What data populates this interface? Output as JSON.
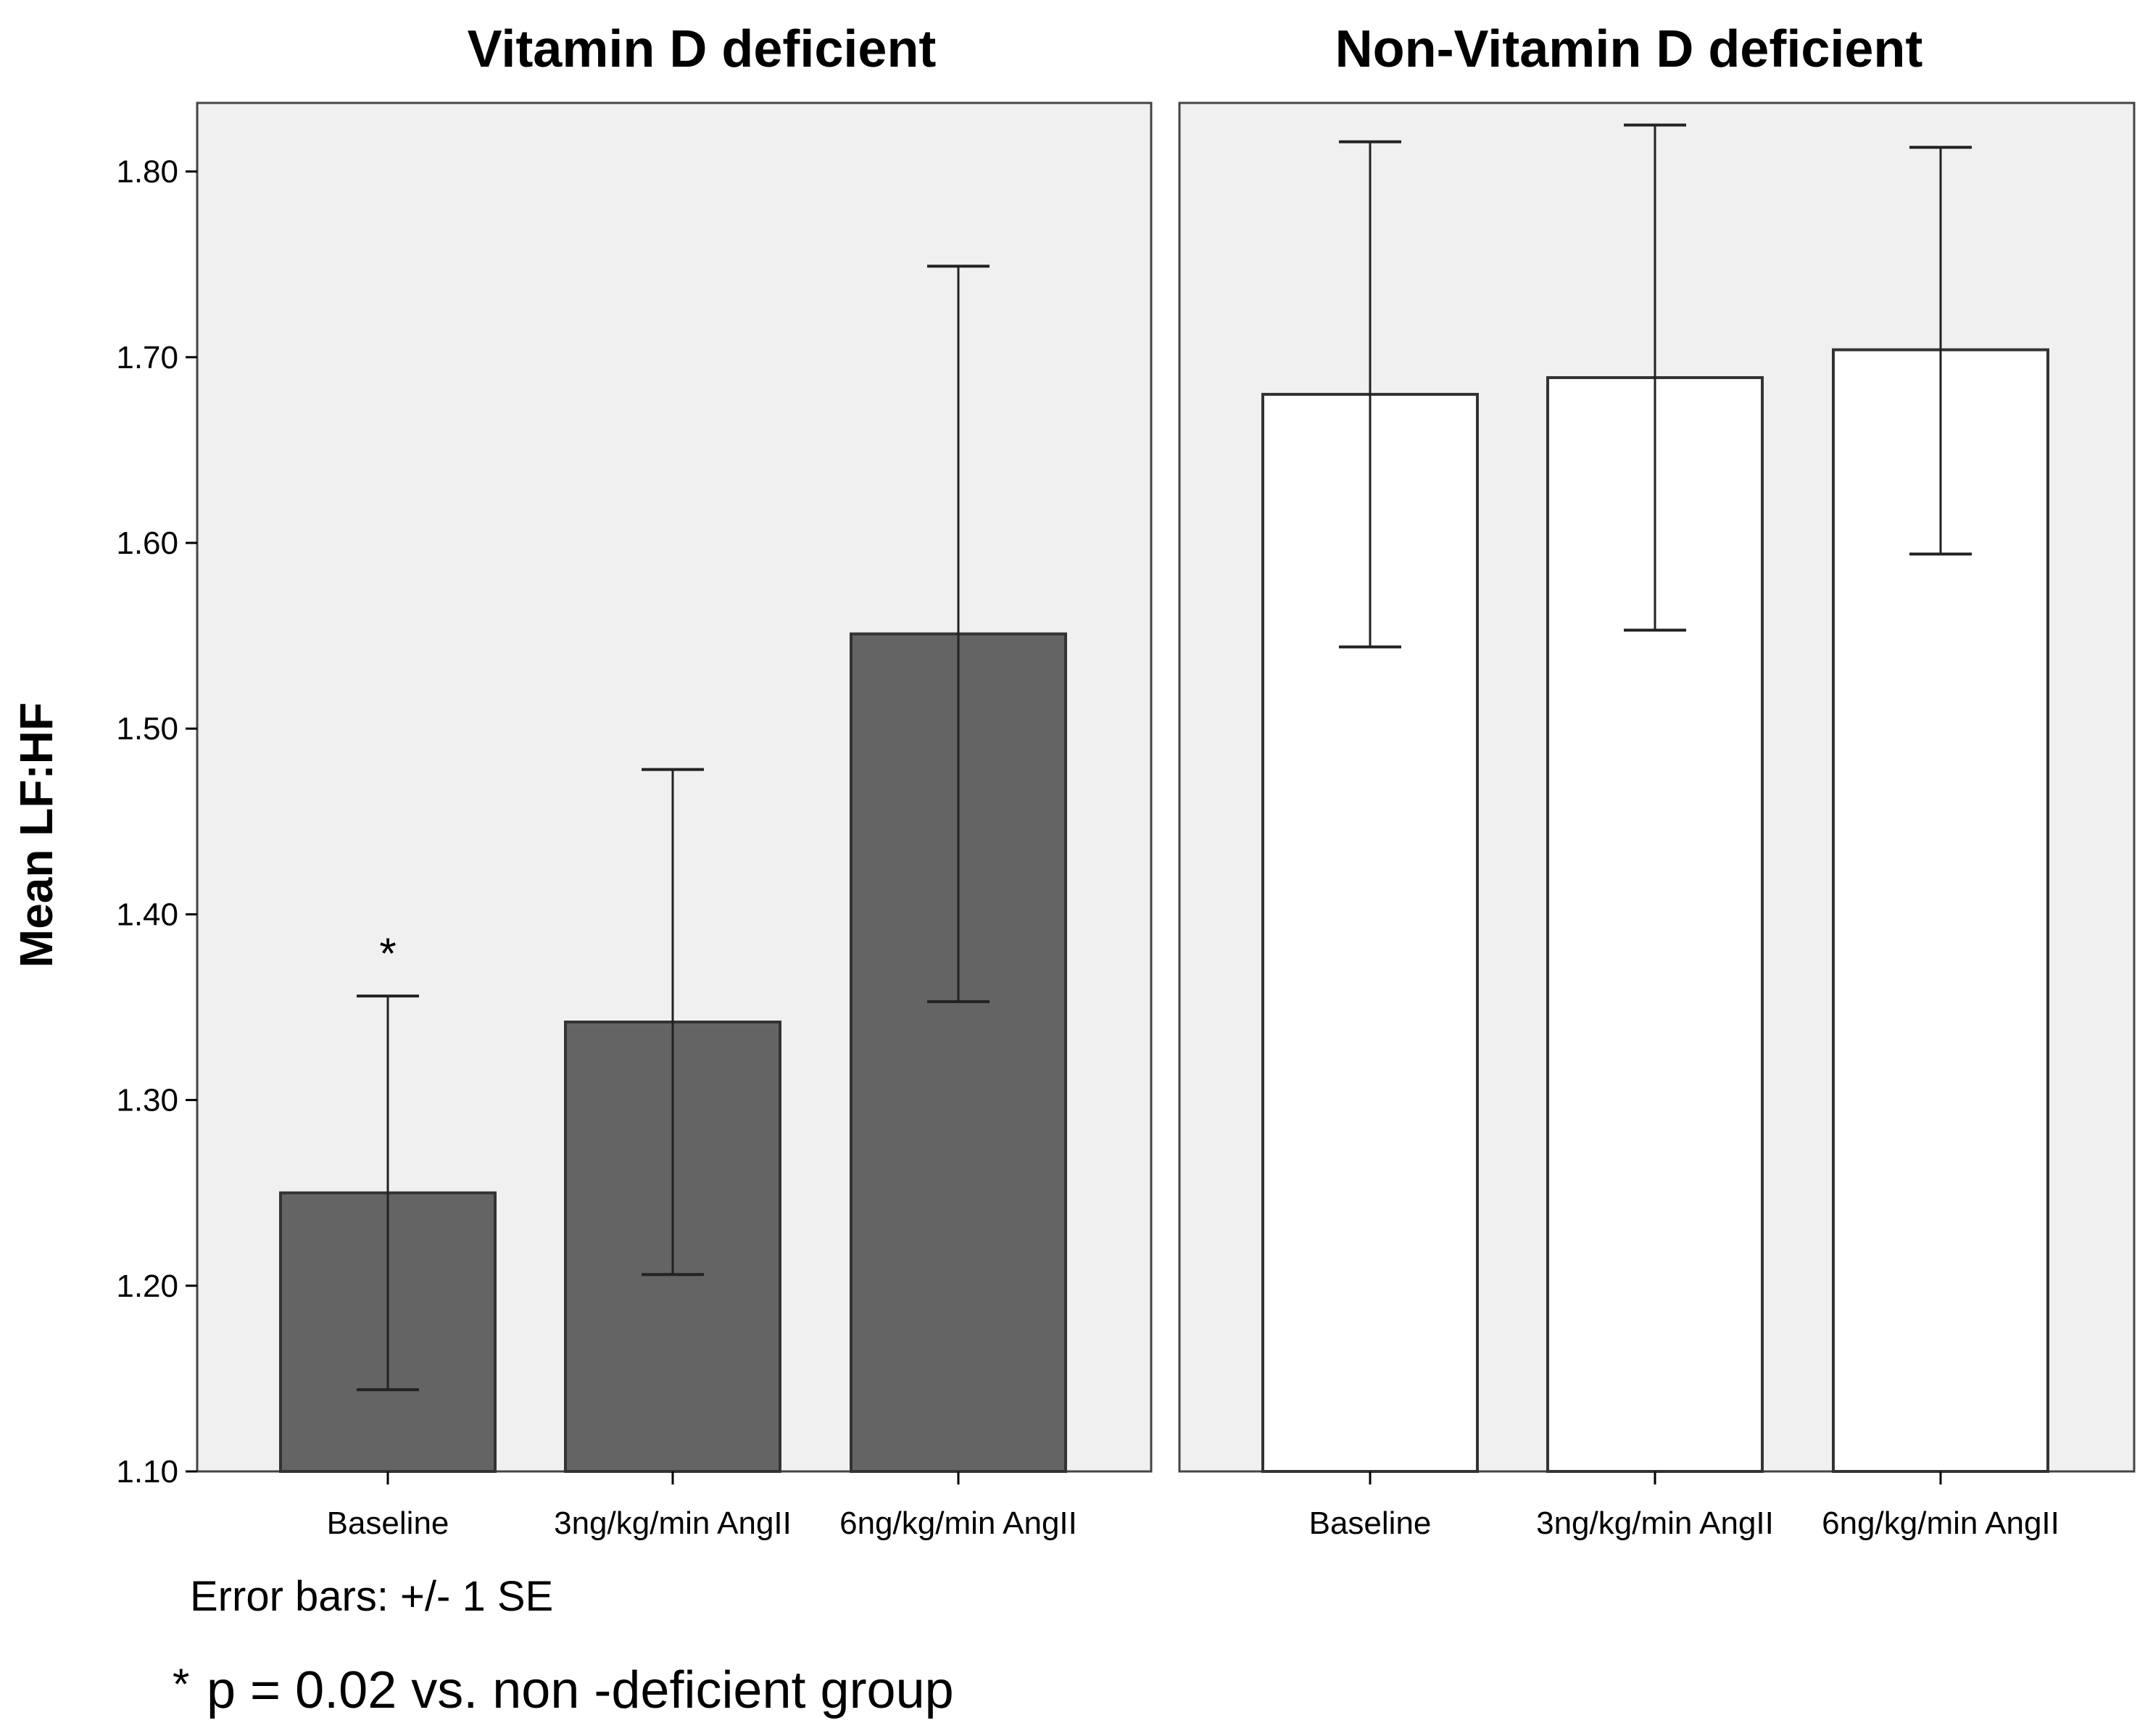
{
  "chart_data": {
    "type": "bar",
    "ylabel": "Mean LF:HF",
    "ylim": [
      1.1,
      1.84
    ],
    "yticks": [
      "1.10",
      "1.20",
      "1.30",
      "1.40",
      "1.50",
      "1.60",
      "1.70",
      "1.80"
    ],
    "categories": [
      "Baseline",
      "3ng/kg/min AngII",
      "6ng/kg/min AngII"
    ],
    "panels": [
      {
        "title": "Vitamin D deficient",
        "bar_color": "#646464",
        "values": [
          1.25,
          1.342,
          1.551
        ],
        "error_lower": [
          1.144,
          1.206,
          1.353
        ],
        "error_upper": [
          1.356,
          1.478,
          1.749
        ],
        "annotations": [
          "*",
          "",
          ""
        ]
      },
      {
        "title": "Non-Vitamin D deficient",
        "bar_color": "#ffffff",
        "values": [
          1.68,
          1.689,
          1.704
        ],
        "error_lower": [
          1.544,
          1.553,
          1.594
        ],
        "error_upper": [
          1.816,
          1.825,
          1.813
        ],
        "annotations": [
          "",
          "",
          ""
        ]
      }
    ],
    "error_bar_note": "Error bars: +/- 1 SE",
    "footnote_symbol": "*",
    "footnote_text": "p = 0.02 vs. non -deficient group"
  }
}
